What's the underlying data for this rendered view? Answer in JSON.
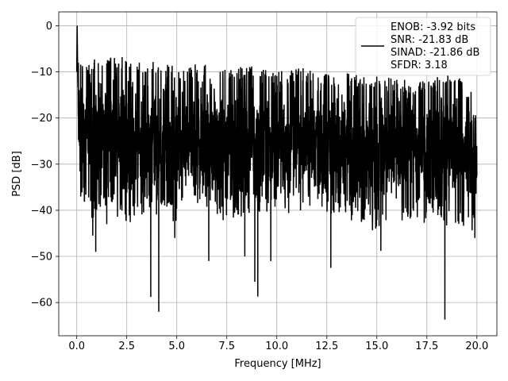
{
  "chart_data": {
    "type": "line",
    "title": "",
    "xlabel": "Frequency [MHz]",
    "ylabel": "PSD [dB]",
    "xlim": [
      -0.9,
      21
    ],
    "ylim": [
      -67.2,
      3
    ],
    "x_ticks": [
      0.0,
      2.5,
      5.0,
      7.5,
      10.0,
      12.5,
      15.0,
      17.5,
      20.0
    ],
    "x_tick_labels": [
      "0.0",
      "2.5",
      "5.0",
      "7.5",
      "10.0",
      "12.5",
      "15.0",
      "17.5",
      "20.0"
    ],
    "y_ticks": [
      0,
      -10,
      -20,
      -30,
      -40,
      -50,
      -60
    ],
    "y_tick_labels": [
      "0",
      "−10",
      "−20",
      "−30",
      "−40",
      "−50",
      "−60"
    ],
    "grid": true,
    "legend_position": "top-right",
    "legend_lines": [
      "ENOB: -3.92 bits",
      "SNR: -21.83 dB",
      "SINAD: -21.86 dB",
      "SFDR: 3.18"
    ],
    "series": [
      {
        "color": "#000000",
        "x_range": [
          0,
          20
        ],
        "peak": {
          "x": 0.02,
          "y": 0
        },
        "envelope_upper": [
          [
            0.0,
            0
          ],
          [
            0.05,
            -5
          ],
          [
            0.3,
            -8
          ],
          [
            1.0,
            -7
          ],
          [
            2.2,
            -6.5
          ],
          [
            2.5,
            -6
          ],
          [
            3.0,
            -8
          ],
          [
            4.0,
            -7.5
          ],
          [
            5.0,
            -9
          ],
          [
            6.0,
            -8
          ],
          [
            7.5,
            -9.5
          ],
          [
            8.6,
            -8.5
          ],
          [
            10.0,
            -10
          ],
          [
            11.0,
            -9
          ],
          [
            12.5,
            -10
          ],
          [
            13.5,
            -10
          ],
          [
            15.0,
            -11
          ],
          [
            17.0,
            -12
          ],
          [
            18.7,
            -10
          ],
          [
            20.0,
            -14
          ]
        ],
        "envelope_lower": [
          [
            0.0,
            -20
          ],
          [
            0.2,
            -37
          ],
          [
            1.0,
            -45
          ],
          [
            1.5,
            -40
          ],
          [
            2.5,
            -43
          ],
          [
            3.5,
            -41
          ],
          [
            5.0,
            -43
          ],
          [
            6.5,
            -40
          ],
          [
            7.5,
            -43
          ],
          [
            9.0,
            -41
          ],
          [
            10.0,
            -42
          ],
          [
            11.5,
            -40
          ],
          [
            13.0,
            -41
          ],
          [
            15.0,
            -45
          ],
          [
            16.5,
            -42
          ],
          [
            18.0,
            -43
          ],
          [
            20.0,
            -45
          ]
        ],
        "notable_dips": [
          [
            0.2,
            -37
          ],
          [
            0.8,
            -45.5
          ],
          [
            0.95,
            -49
          ],
          [
            1.5,
            -43
          ],
          [
            3.7,
            -58.8
          ],
          [
            4.1,
            -62
          ],
          [
            4.9,
            -46
          ],
          [
            6.6,
            -51
          ],
          [
            8.4,
            -50
          ],
          [
            8.9,
            -55.5
          ],
          [
            9.05,
            -58.7
          ],
          [
            9.7,
            -51
          ],
          [
            12.7,
            -52.5
          ],
          [
            15.2,
            -48.8
          ],
          [
            18.4,
            -63.7
          ],
          [
            19.9,
            -46
          ]
        ]
      }
    ]
  }
}
